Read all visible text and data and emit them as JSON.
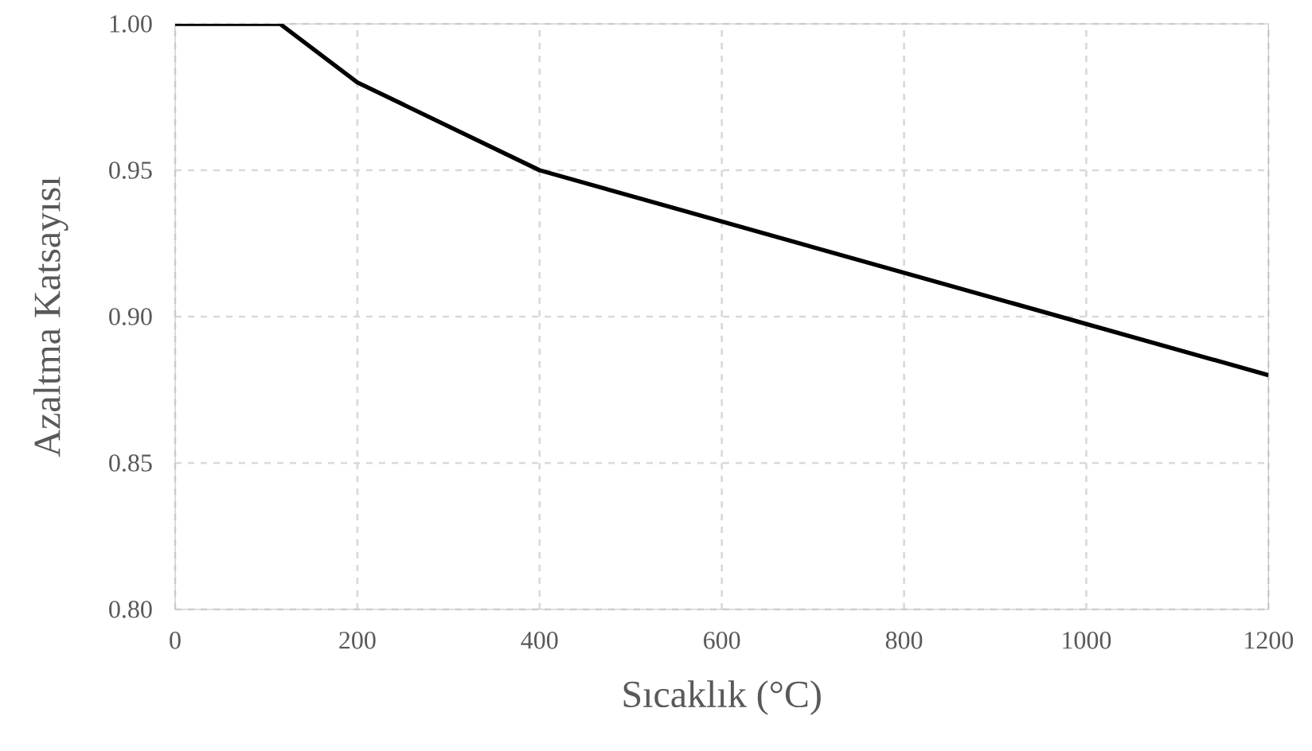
{
  "chart_data": {
    "type": "line",
    "xlabel": "Sıcaklık (°C)",
    "ylabel": "Azaltma Katsayısı",
    "x": [
      0,
      115,
      200,
      400,
      1200
    ],
    "series": [
      {
        "color": "#000000",
        "values": [
          1.0,
          1.0,
          0.98,
          0.95,
          0.88
        ]
      }
    ],
    "xlim": [
      0,
      1200
    ],
    "ylim": [
      0.8,
      1.0
    ],
    "xticks": [
      0,
      200,
      400,
      600,
      800,
      1000,
      1200
    ],
    "yticks": [
      {
        "value": 0.8,
        "label": "0.80"
      },
      {
        "value": 0.85,
        "label": "0.85"
      },
      {
        "value": 0.9,
        "label": "0.90"
      },
      {
        "value": 0.95,
        "label": "0.95"
      },
      {
        "value": 1.0,
        "label": "1.00"
      }
    ],
    "grid": true,
    "marker": "none",
    "line_style": "solid"
  }
}
